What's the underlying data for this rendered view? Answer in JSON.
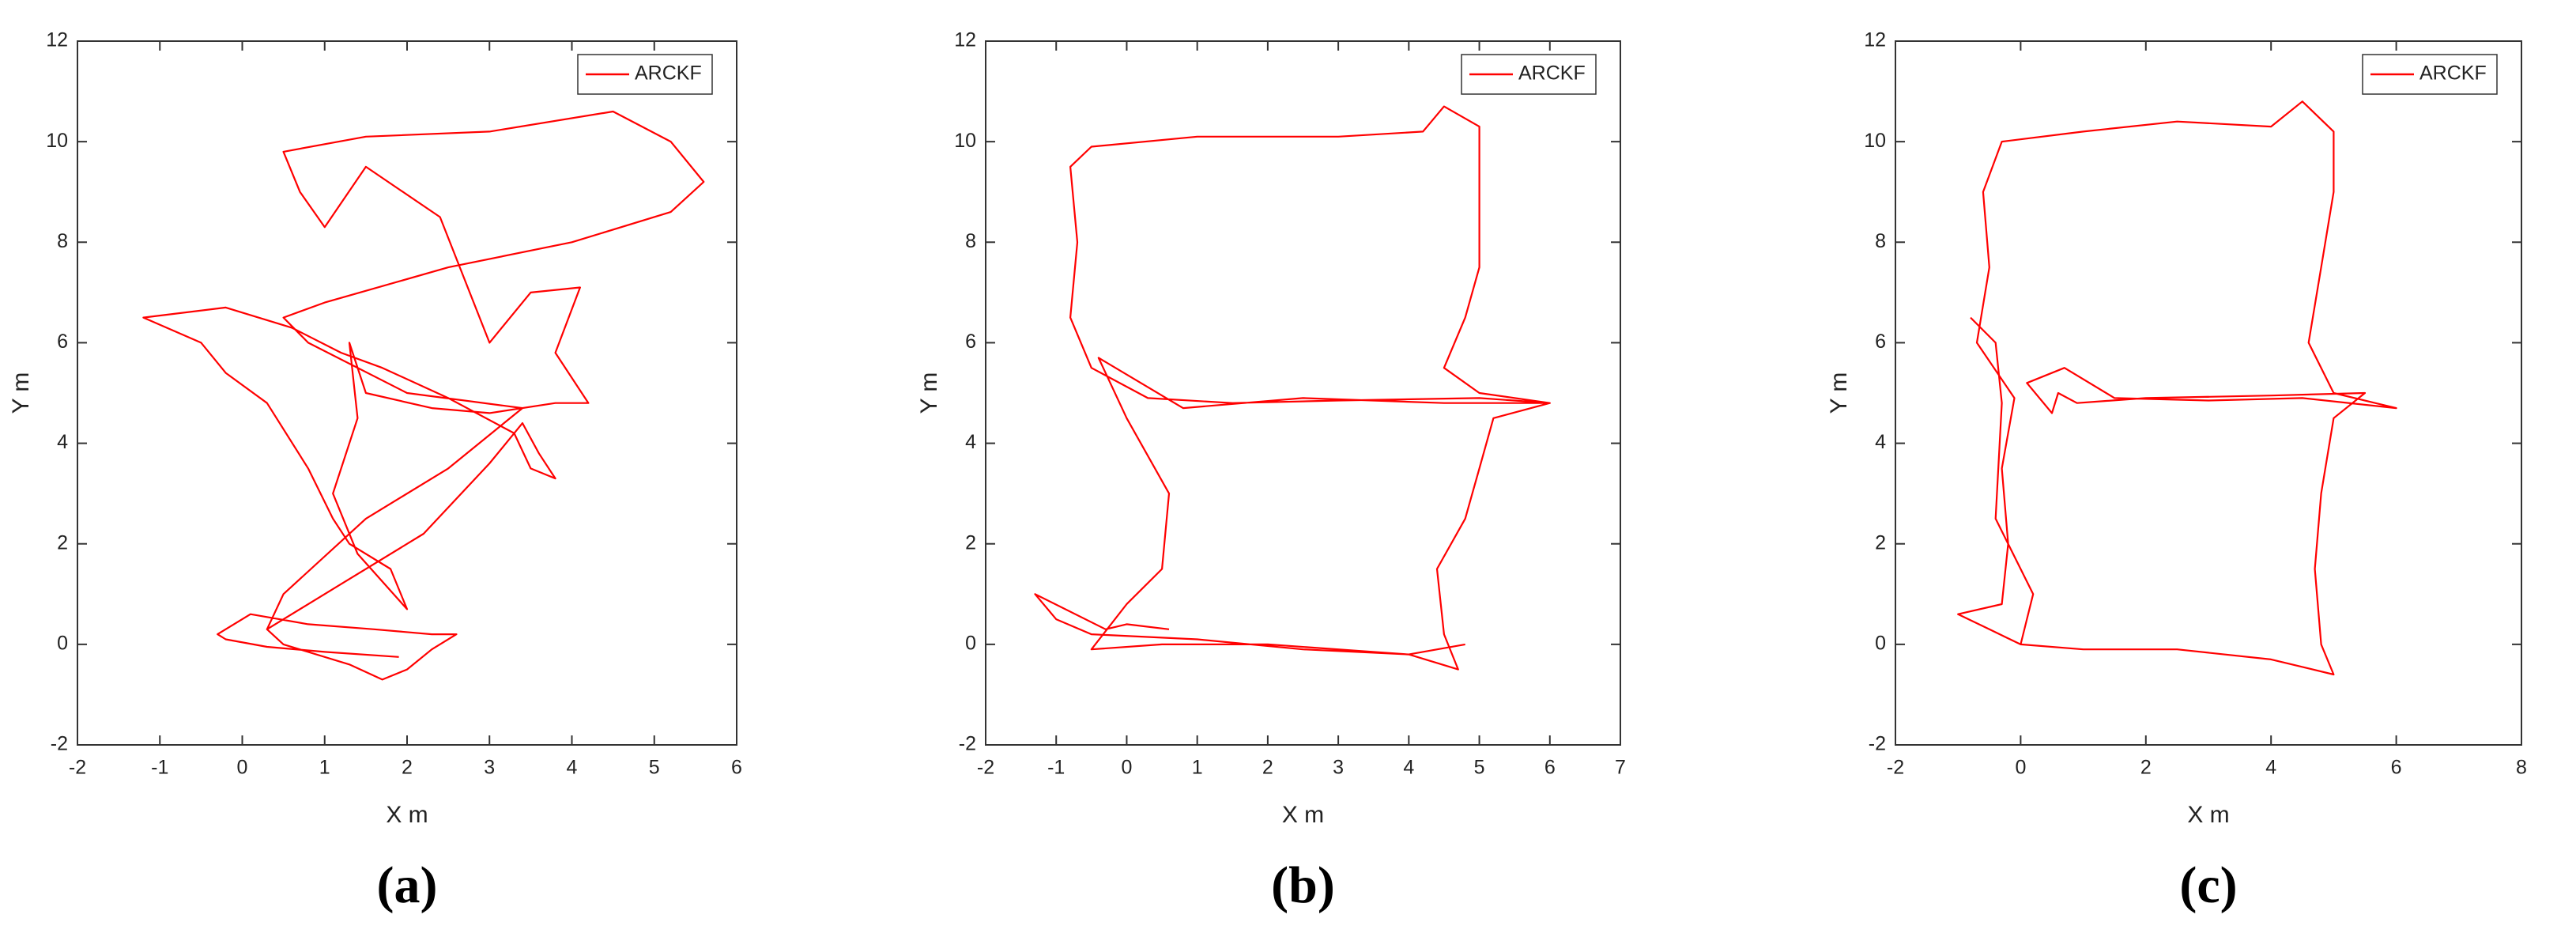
{
  "chart_data": [
    {
      "type": "line",
      "label": "(a)",
      "x_label": "X m",
      "y_label": "Y m",
      "legend": "upper right",
      "xlim": [
        -2,
        6
      ],
      "xticks": [
        -2,
        -1,
        0,
        1,
        2,
        3,
        4,
        5,
        6
      ],
      "ylim": [
        -2,
        12
      ],
      "yticks": [
        -2,
        0,
        2,
        4,
        6,
        8,
        10,
        12
      ],
      "series": [
        {
          "name": "ARCKF",
          "color": "#ff0000",
          "x": [
            1.9,
            1.0,
            0.3,
            -0.2,
            -0.3,
            0.1,
            0.8,
            1.6,
            2.3,
            2.6,
            2.3,
            2.0,
            1.7,
            1.3,
            0.5,
            0.3,
            1.2,
            2.2,
            3.0,
            3.4,
            3.6,
            3.8,
            3.5,
            3.3,
            2.5,
            1.7,
            1.2,
            0.6,
            -0.2,
            -1.2,
            -0.5,
            -0.2,
            0.3,
            0.8,
            1.1,
            1.3,
            1.8,
            2.0,
            1.4,
            1.1,
            1.4,
            1.3,
            1.5,
            2.3,
            3.0,
            3.8,
            4.2,
            3.8,
            4.1,
            3.5,
            3.0,
            2.4,
            1.5,
            1.0,
            0.7,
            0.5,
            1.5,
            3.0,
            4.5,
            5.2,
            5.6,
            5.2,
            4.0,
            2.5,
            1.0,
            0.5,
            0.8,
            2.0,
            3.4,
            2.5,
            1.5,
            0.5,
            0.3
          ],
          "values": [
            -0.25,
            -0.15,
            -0.05,
            0.1,
            0.2,
            0.6,
            0.4,
            0.3,
            0.2,
            0.2,
            -0.1,
            -0.5,
            -0.7,
            -0.4,
            0.0,
            0.3,
            1.2,
            2.2,
            3.6,
            4.4,
            3.8,
            3.3,
            3.5,
            4.2,
            4.9,
            5.5,
            5.8,
            6.3,
            6.7,
            6.5,
            6.0,
            5.4,
            4.8,
            3.5,
            2.5,
            2.0,
            1.5,
            0.7,
            1.8,
            3.0,
            4.5,
            6.0,
            5.0,
            4.7,
            4.6,
            4.8,
            4.8,
            5.8,
            7.1,
            7.0,
            6.0,
            8.5,
            9.5,
            8.3,
            9.0,
            9.8,
            10.1,
            10.2,
            10.6,
            10.0,
            9.2,
            8.6,
            8.0,
            7.5,
            6.8,
            6.5,
            6.0,
            5.0,
            4.7,
            3.5,
            2.5,
            1.0,
            0.3
          ]
        }
      ]
    },
    {
      "type": "line",
      "label": "(b)",
      "x_label": "X m",
      "y_label": "Y m",
      "legend": "upper right",
      "xlim": [
        -2,
        7
      ],
      "xticks": [
        -2,
        -1,
        0,
        1,
        2,
        3,
        4,
        5,
        6,
        7
      ],
      "ylim": [
        -2,
        12
      ],
      "yticks": [
        -2,
        0,
        2,
        4,
        6,
        8,
        10,
        12
      ],
      "series": [
        {
          "name": "ARCKF",
          "color": "#ff0000",
          "x": [
            0.6,
            0.0,
            -0.3,
            -1.3,
            -1.0,
            -0.5,
            1.0,
            2.5,
            4.0,
            4.7,
            4.5,
            4.4,
            4.8,
            5.0,
            5.2,
            6.0,
            5.0,
            3.0,
            1.5,
            0.3,
            -0.5,
            -0.8,
            -0.7,
            -0.8,
            -0.5,
            1.0,
            3.0,
            4.2,
            4.5,
            5.0,
            5.0,
            5.0,
            4.8,
            4.5,
            5.0,
            6.0,
            4.5,
            2.5,
            0.8,
            -0.4,
            0.0,
            0.6,
            0.5,
            0.0,
            -0.5,
            0.5,
            2.0,
            4.0,
            4.8
          ],
          "values": [
            0.3,
            0.4,
            0.3,
            1.0,
            0.5,
            0.2,
            0.1,
            -0.1,
            -0.2,
            -0.5,
            0.2,
            1.5,
            2.5,
            3.5,
            4.5,
            4.8,
            4.9,
            4.85,
            4.8,
            4.9,
            5.5,
            6.5,
            8.0,
            9.5,
            9.9,
            10.1,
            10.1,
            10.2,
            10.7,
            10.3,
            9.0,
            7.5,
            6.5,
            5.5,
            5.0,
            4.8,
            4.8,
            4.9,
            4.7,
            5.7,
            4.5,
            3.0,
            1.5,
            0.8,
            -0.1,
            0.0,
            0.0,
            -0.2,
            0.0
          ]
        }
      ]
    },
    {
      "type": "line",
      "label": "(c)",
      "x_label": "X m",
      "y_label": "Y m",
      "legend": "upper right",
      "xlim": [
        -2,
        8
      ],
      "xticks": [
        -2,
        0,
        2,
        4,
        6,
        8
      ],
      "ylim": [
        -2,
        12
      ],
      "yticks": [
        -2,
        0,
        2,
        4,
        6,
        8,
        10,
        12
      ],
      "series": [
        {
          "name": "ARCKF",
          "color": "#ff0000",
          "x": [
            0.0,
            -0.5,
            -1.0,
            -0.3,
            -0.2,
            -0.3,
            -0.1,
            -0.7,
            -0.5,
            -0.6,
            -0.3,
            1.0,
            2.5,
            4.0,
            4.5,
            5.0,
            5.0,
            4.8,
            4.6,
            5.0,
            6.0,
            4.5,
            3.0,
            1.5,
            0.7,
            0.1,
            0.5,
            0.6,
            0.9,
            2.0,
            4.0,
            5.5,
            5.0,
            4.8,
            4.7,
            4.8,
            5.0,
            4.0,
            2.5,
            1.0,
            0.0,
            0.2,
            -0.4,
            -0.3,
            -0.4,
            -0.8
          ],
          "values": [
            0.0,
            0.3,
            0.6,
            0.8,
            2.0,
            3.5,
            4.9,
            6.0,
            7.5,
            9.0,
            10.0,
            10.2,
            10.4,
            10.3,
            10.8,
            10.2,
            9.0,
            7.5,
            6.0,
            5.0,
            4.7,
            4.9,
            4.85,
            4.9,
            5.5,
            5.2,
            4.6,
            5.0,
            4.8,
            4.9,
            4.95,
            5.0,
            4.5,
            3.0,
            1.5,
            0.0,
            -0.6,
            -0.3,
            -0.1,
            -0.1,
            0.0,
            1.0,
            2.5,
            4.8,
            6.0,
            6.5
          ]
        }
      ]
    }
  ]
}
